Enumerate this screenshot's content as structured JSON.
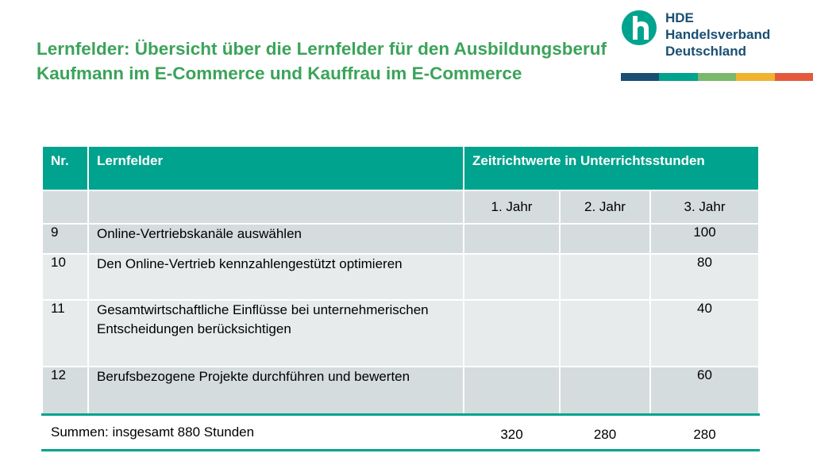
{
  "title": "Lernfelder: Übersicht über die Lernfelder für den Ausbildungsberuf Kaufmann im E-Commerce und Kauffrau im E-Commerce",
  "logo": {
    "line1": "HDE",
    "line2": "Handelsverband",
    "line3": "Deutschland",
    "icon": "hde-h-icon",
    "colors": {
      "mark": "#00a38d",
      "text": "#1a4f72"
    },
    "stripe_colors": [
      "#1a4f72",
      "#00a38d",
      "#7ab86b",
      "#f0b330",
      "#e45a3c"
    ]
  },
  "table": {
    "headers": {
      "nr": "Nr.",
      "lernfelder": "Lernfelder",
      "zeit": "Zeitrichtwerte in Unterrichtsstunden"
    },
    "years": [
      "1. Jahr",
      "2. Jahr",
      "3. Jahr"
    ],
    "rows": [
      {
        "nr": "9",
        "name": "Online-Vertriebskanäle auswählen",
        "y1": "",
        "y2": "",
        "y3": "100"
      },
      {
        "nr": "10",
        "name": "Den Online-Vertrieb kennzahlengestützt optimieren",
        "y1": "",
        "y2": "",
        "y3": "80"
      },
      {
        "nr": "11",
        "name": "Gesamtwirtschaftliche Einflüsse bei unternehmerischen Entscheidungen berücksichtigen",
        "y1": "",
        "y2": "",
        "y3": "40"
      },
      {
        "nr": "12",
        "name": "Berufsbezogene Projekte durchführen und bewerten",
        "y1": "",
        "y2": "",
        "y3": "60"
      }
    ],
    "sum": {
      "label": "Summen: insgesamt 880 Stunden",
      "y1": "320",
      "y2": "280",
      "y3": "280"
    },
    "colors": {
      "header": "#00a38d",
      "row_a": "#d5dcdd",
      "row_b": "#e8ebeb"
    }
  }
}
